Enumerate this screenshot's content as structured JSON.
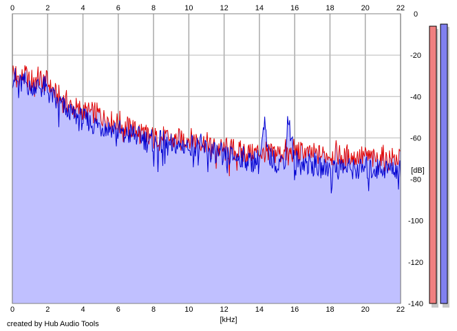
{
  "chart_data": {
    "type": "area",
    "xlabel": "[kHz]",
    "ylabel": "[dB]",
    "xlim": [
      0,
      22
    ],
    "ylim": [
      -140,
      0
    ],
    "x_ticks": [
      0,
      2,
      4,
      6,
      8,
      10,
      12,
      14,
      16,
      18,
      20,
      22
    ],
    "y_ticks": [
      0,
      -20,
      -40,
      -60,
      -80,
      -100,
      -120,
      -140
    ],
    "grid": true,
    "series": [
      {
        "color": "#e00000",
        "x": [
          0,
          0.25,
          0.5,
          0.75,
          1,
          1.25,
          1.5,
          1.75,
          2,
          2.5,
          3,
          3.5,
          4,
          4.5,
          5,
          5.5,
          6,
          6.5,
          7,
          7.5,
          8,
          8.5,
          9,
          9.5,
          10,
          10.5,
          11,
          11.5,
          12,
          12.5,
          13,
          13.5,
          14,
          14.3,
          14.5,
          15,
          15.5,
          15.6,
          16,
          16.5,
          17,
          17.5,
          18,
          18.5,
          19,
          19.5,
          20,
          20.5,
          21,
          21.5,
          22
        ],
        "values": [
          -28,
          -30,
          -31,
          -30,
          -33,
          -31,
          -32,
          -33,
          -33,
          -40,
          -43,
          -46,
          -47,
          -48,
          -49,
          -51,
          -53,
          -55,
          -56,
          -57,
          -60,
          -60,
          -61,
          -61,
          -60,
          -61,
          -63,
          -64,
          -66,
          -66,
          -67,
          -67,
          -67,
          -68,
          -67,
          -67,
          -67,
          -67,
          -67,
          -67,
          -68,
          -68,
          -68,
          -68,
          -69,
          -69,
          -69,
          -70,
          -70,
          -70,
          -70
        ]
      },
      {
        "color": "#0000d0",
        "x": [
          0,
          0.25,
          0.5,
          0.75,
          1,
          1.25,
          1.5,
          1.75,
          2,
          2.5,
          3,
          3.5,
          4,
          4.5,
          5,
          5.5,
          6,
          6.5,
          7,
          7.5,
          8,
          8.5,
          9,
          9.5,
          10,
          10.5,
          11,
          11.5,
          12,
          12.5,
          13,
          13.5,
          14,
          14.3,
          14.5,
          15,
          15.5,
          15.6,
          16,
          16.5,
          17,
          17.5,
          18,
          18.5,
          19,
          19.5,
          20,
          20.5,
          21,
          21.5,
          22
        ],
        "values": [
          -30,
          -33,
          -34,
          -33,
          -36,
          -34,
          -35,
          -36,
          -37,
          -43,
          -46,
          -49,
          -51,
          -53,
          -54,
          -55,
          -57,
          -58,
          -59,
          -60,
          -63,
          -63,
          -64,
          -64,
          -63,
          -64,
          -66,
          -67,
          -69,
          -69,
          -70,
          -71,
          -71,
          -54,
          -70,
          -71,
          -71,
          -48,
          -72,
          -72,
          -73,
          -75,
          -74,
          -74,
          -75,
          -75,
          -75,
          -75,
          -75,
          -75,
          -75
        ]
      }
    ],
    "level_meters": [
      {
        "color": "#f08080",
        "level_db": -6
      },
      {
        "color": "#8080f0",
        "level_db": -5
      }
    ],
    "fill_color": "#c0c0ff"
  },
  "footer": {
    "credit": "created by Hub Audio Tools"
  }
}
